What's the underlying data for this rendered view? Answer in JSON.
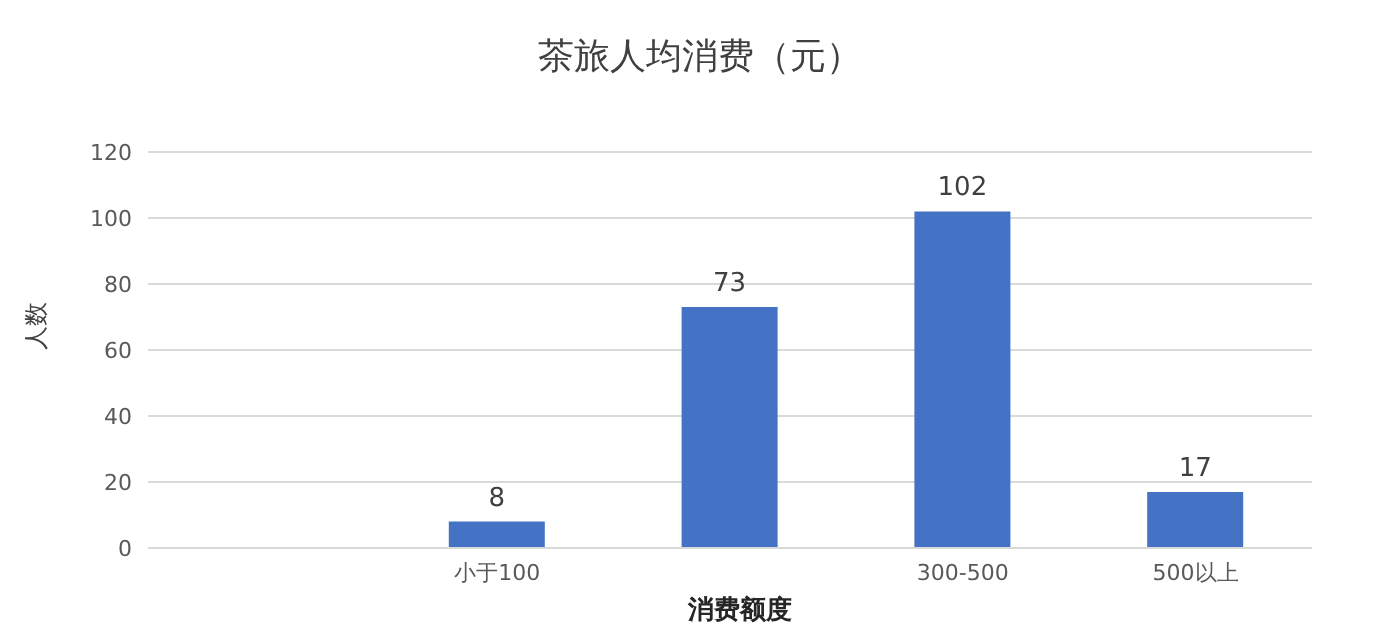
{
  "chart_data": {
    "type": "bar",
    "title": "茶旅人均消费（元）",
    "xlabel": "消费额度",
    "ylabel": "人数",
    "categories": [
      null,
      "小于100",
      null,
      "300-500",
      "500以上"
    ],
    "values": [
      null,
      8,
      73,
      102,
      17
    ],
    "color": "#4472c4",
    "ylim": [
      0,
      120
    ],
    "yticks": [
      0,
      20,
      40,
      60,
      80,
      100,
      120
    ],
    "grid": "y",
    "data_labels": true
  }
}
